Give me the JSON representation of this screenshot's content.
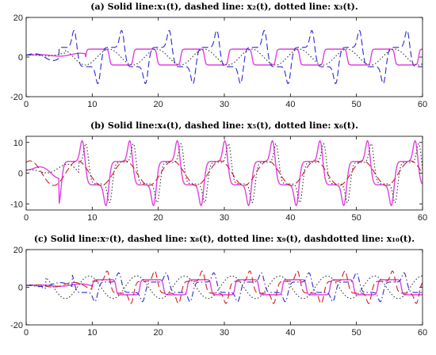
{
  "chart_data": [
    {
      "type": "line",
      "title": "(a) Solid line:x₁(t), dashed line: x₂(t), dotted line: x₃(t).",
      "xlim": [
        0,
        60
      ],
      "ylim": [
        -20,
        20
      ],
      "xticks": [
        "0",
        "10",
        "20",
        "30",
        "40",
        "50",
        "60"
      ],
      "yticks": [
        "20",
        "0",
        "-20"
      ],
      "grid": false,
      "series": [
        {
          "style": "solid",
          "color": "#e040e0",
          "amplitude": 4,
          "period": 7.2,
          "onset": 9,
          "shape": "square"
        },
        {
          "style": "dashed",
          "color": "#2a2ad0",
          "amplitude": 14,
          "period": 7.2,
          "onset": 5,
          "shape": "spike"
        },
        {
          "style": "dotted",
          "color": "#333333",
          "amplitude": 4,
          "period": 7.2,
          "onset": 6,
          "shape": "sine"
        }
      ]
    },
    {
      "type": "line",
      "title": "(b) Solid line:x₄(t), dashed line: x₅(t), dotted line: x₆(t).",
      "xlim": [
        0,
        60
      ],
      "ylim": [
        -12,
        12
      ],
      "xticks": [
        "0",
        "10",
        "20",
        "30",
        "40",
        "50",
        "60"
      ],
      "yticks": [
        "10",
        "0",
        "-10"
      ],
      "grid": false,
      "series": [
        {
          "style": "solid",
          "color": "#e040e0",
          "amplitude": 11,
          "period": 7.2,
          "onset": 5,
          "shape": "spike"
        },
        {
          "style": "dashed",
          "color": "#d02020",
          "amplitude": 4,
          "period": 7.2,
          "onset": 0,
          "shape": "sine"
        },
        {
          "style": "dotted",
          "color": "#333333",
          "amplitude": 10,
          "period": 7.2,
          "onset": 8,
          "shape": "spike"
        }
      ]
    },
    {
      "type": "line",
      "title": "(c) Solid line:x₇(t), dashed line: x₈(t), dotted line: x₉(t), dashdotted line: x₁₀(t).",
      "xlim": [
        0,
        60
      ],
      "ylim": [
        -20,
        20
      ],
      "xticks": [
        "0",
        "10",
        "20",
        "30",
        "40",
        "50",
        "60"
      ],
      "yticks": [
        "20",
        "0",
        "-20"
      ],
      "grid": false,
      "series": [
        {
          "style": "solid",
          "color": "#e040e0",
          "amplitude": 4,
          "period": 7.2,
          "onset": 10,
          "shape": "square"
        },
        {
          "style": "dashed",
          "color": "#d02020",
          "amplitude": 9,
          "period": 7.2,
          "onset": 10,
          "shape": "spike"
        },
        {
          "style": "dotted",
          "color": "#333333",
          "amplitude": 6,
          "period": 7.2,
          "onset": 3,
          "shape": "sine"
        },
        {
          "style": "dashdot",
          "color": "#2a2ad0",
          "amplitude": 8,
          "period": 7.2,
          "onset": 7,
          "shape": "spike"
        }
      ]
    }
  ]
}
